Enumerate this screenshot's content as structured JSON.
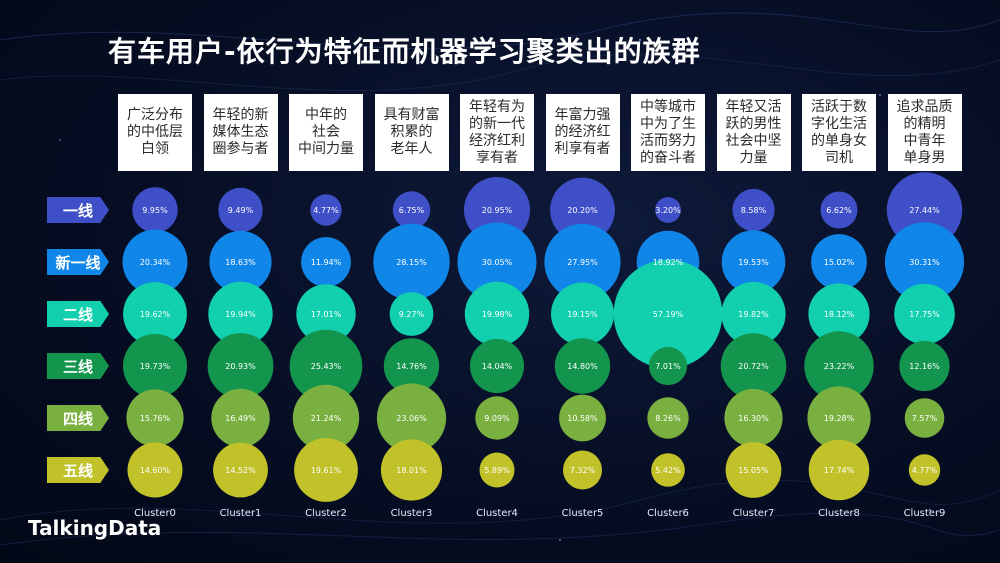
{
  "title": "有车用户-依行为特征而机器学习聚类出的族群",
  "logo": "TalkingData",
  "tiers": [
    {
      "label": "一线",
      "color": "#3f4fc7"
    },
    {
      "label": "新一线",
      "color": "#0f86e8"
    },
    {
      "label": "二线",
      "color": "#12cfae"
    },
    {
      "label": "三线",
      "color": "#14954d"
    },
    {
      "label": "四线",
      "color": "#79b03f"
    },
    {
      "label": "五线",
      "color": "#c1c12a"
    }
  ],
  "descriptions": [
    "广泛分布\n的中低层\n白领",
    "年轻的新\n媒体生态\n圈参与者",
    "中年的\n社会\n中间力量",
    "具有财富\n积累的\n老年人",
    "年轻有为\n的新一代\n经济红利\n享有者",
    "年富力强\n的经济红\n利享有者",
    "中等城市\n中为了生\n活而努力\n的奋斗者",
    "年轻又活\n跃的男性\n社会中坚\n力量",
    "活跃于数\n字化生活\n的单身女\n司机",
    "追求品质\n的精明\n中青年\n单身男"
  ],
  "chart_data": {
    "type": "bubble-matrix",
    "title": "有车用户-依行为特征而机器学习聚类出的族群",
    "categories": [
      "Cluster0",
      "Cluster1",
      "Cluster2",
      "Cluster3",
      "Cluster4",
      "Cluster5",
      "Cluster6",
      "Cluster7",
      "Cluster8",
      "Cluster9"
    ],
    "rows": [
      "一线",
      "新一线",
      "二线",
      "三线",
      "四线",
      "五线"
    ],
    "unit": "%",
    "values": [
      [
        9.95,
        9.49,
        4.77,
        6.75,
        20.95,
        20.2,
        3.2,
        8.58,
        6.62,
        27.44
      ],
      [
        20.34,
        18.63,
        11.94,
        28.15,
        30.05,
        27.95,
        18.92,
        19.53,
        15.02,
        30.31
      ],
      [
        19.62,
        19.94,
        17.01,
        9.27,
        19.98,
        19.15,
        57.19,
        19.82,
        18.12,
        17.75
      ],
      [
        19.73,
        20.93,
        25.43,
        14.76,
        14.04,
        14.8,
        7.01,
        20.72,
        23.22,
        12.16
      ],
      [
        15.76,
        16.49,
        21.24,
        23.06,
        9.09,
        10.58,
        8.26,
        16.3,
        19.28,
        7.57
      ],
      [
        14.6,
        14.52,
        19.61,
        18.01,
        5.89,
        7.32,
        5.42,
        15.05,
        17.74,
        4.77
      ]
    ]
  }
}
